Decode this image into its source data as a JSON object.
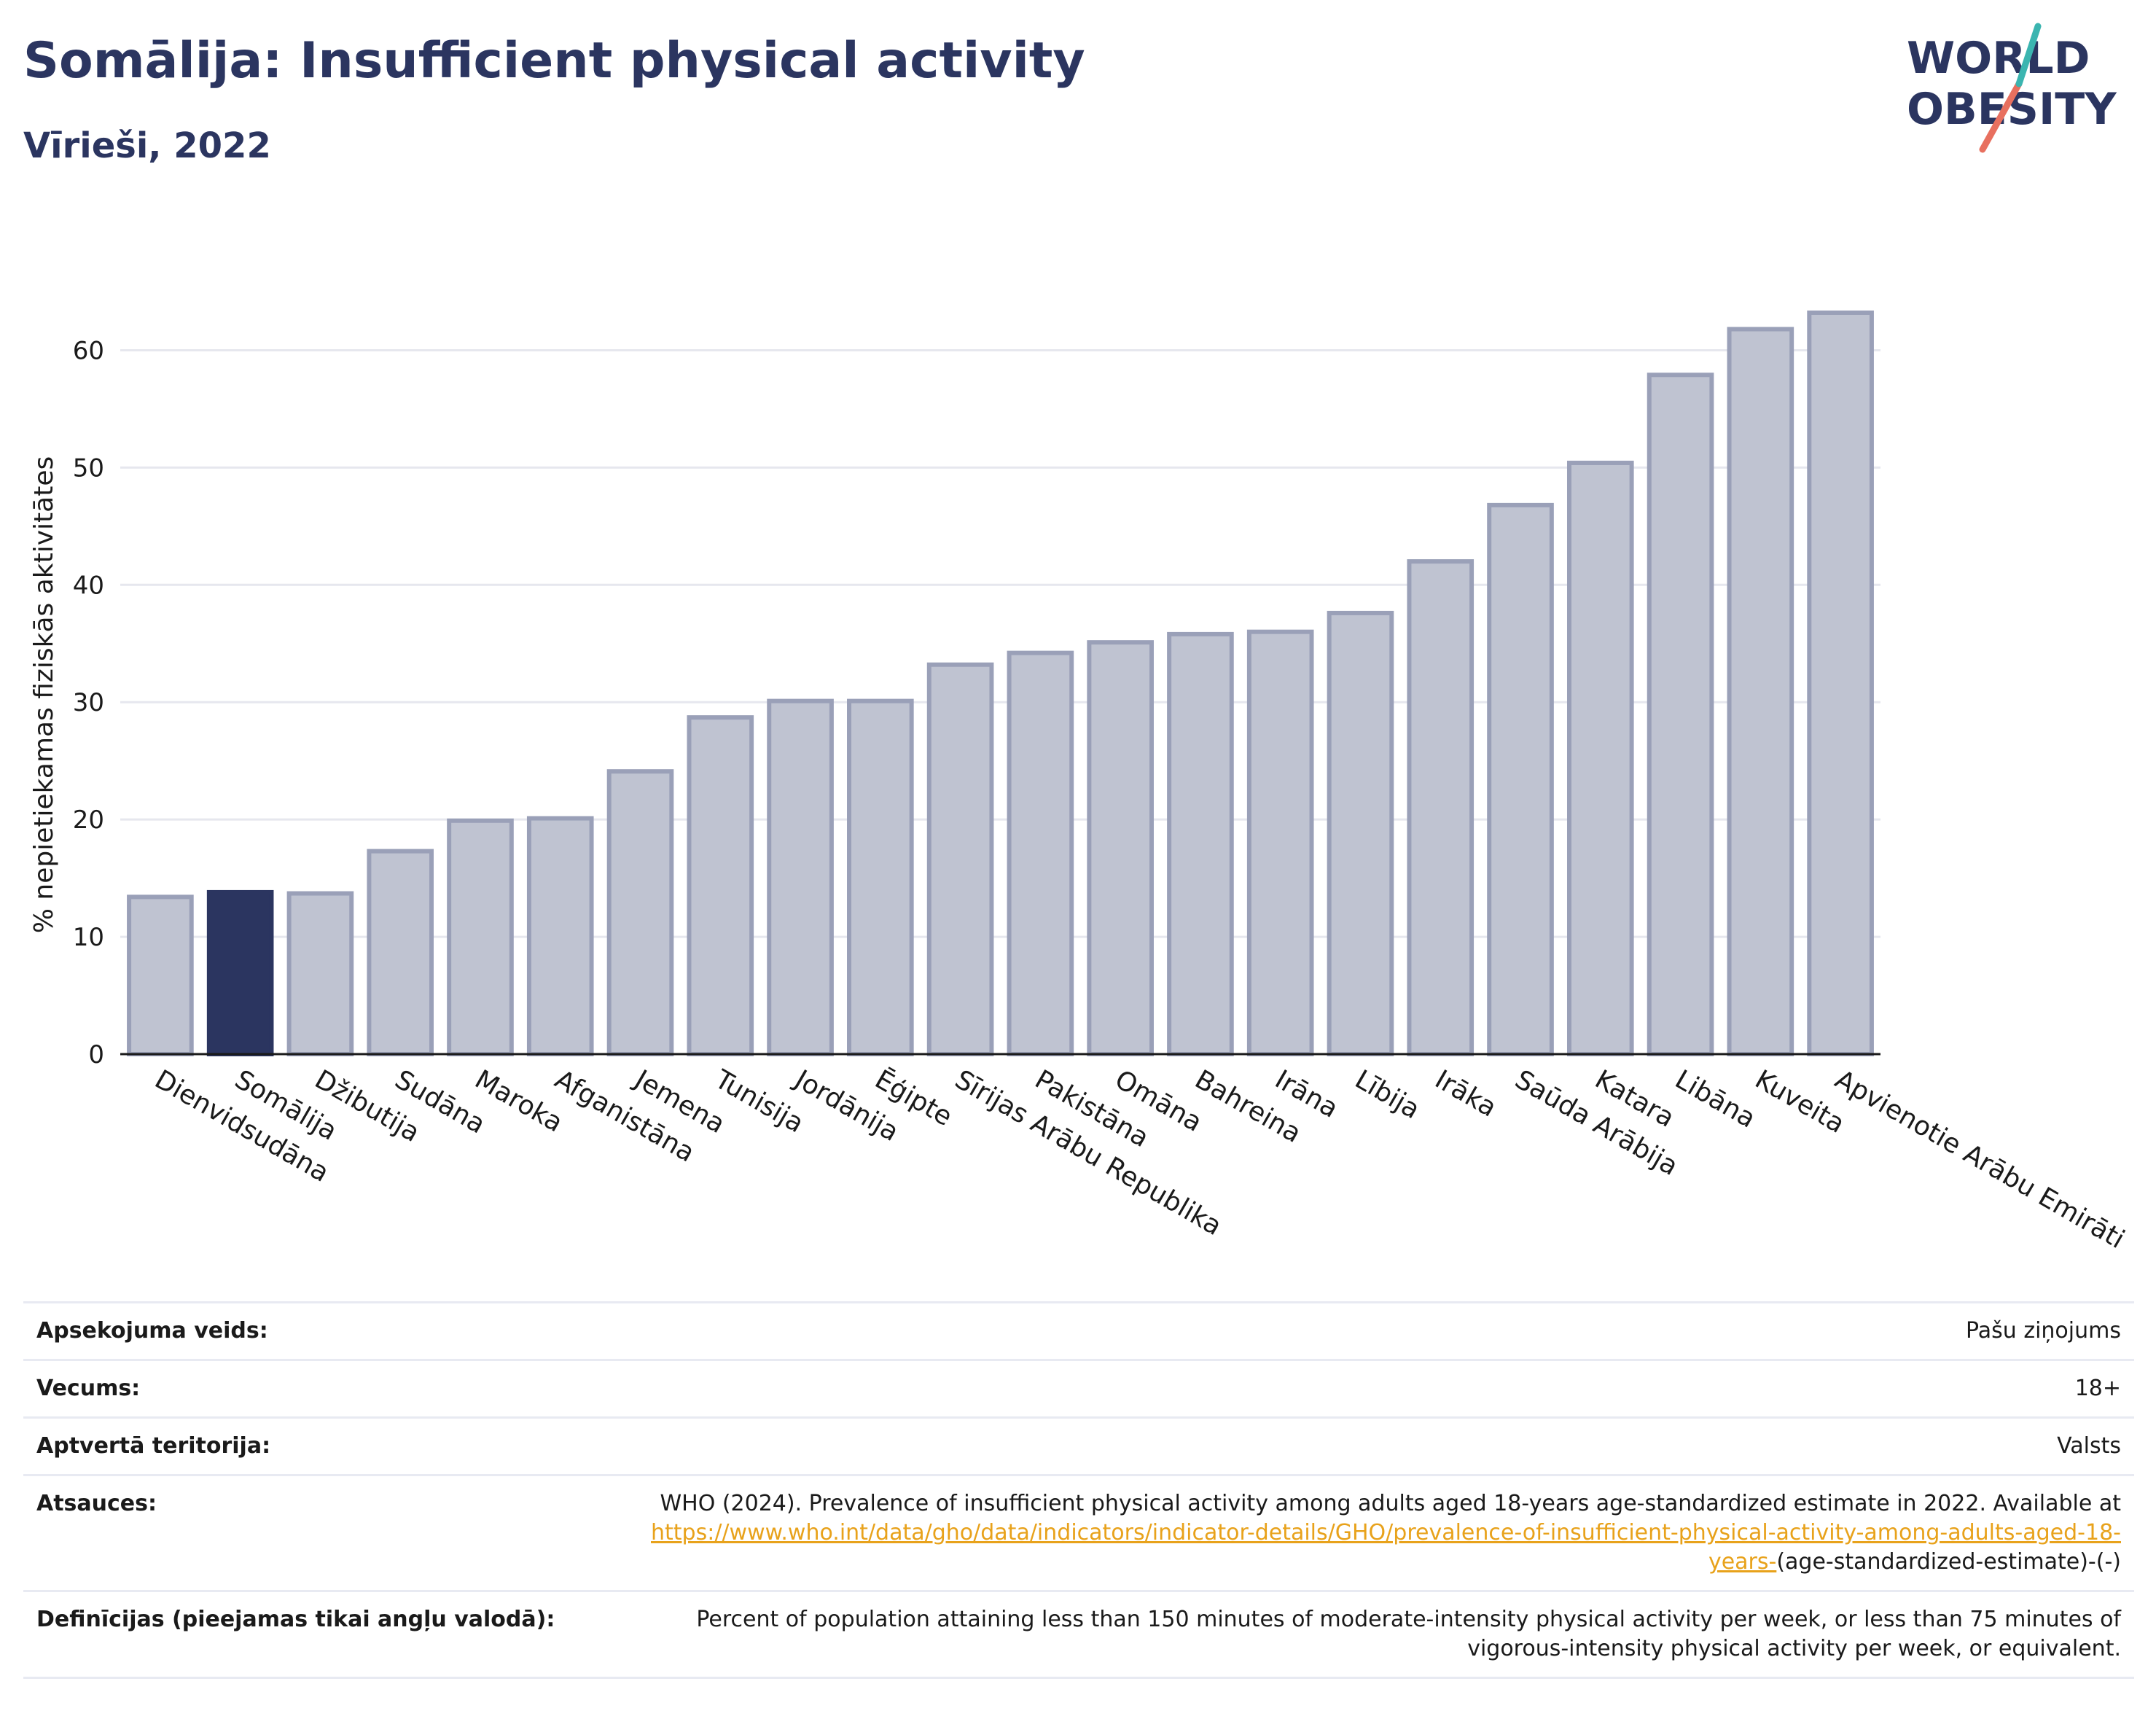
{
  "header": {
    "title": "Somālija: Insufficient physical activity",
    "subtitle": "Vīrieši, 2022"
  },
  "logo": {
    "line1": "WORLD",
    "line2": "OBESITY"
  },
  "colors": {
    "highlight": "#2b3560",
    "bar_fill": "#bfc3d1",
    "bar_stroke": "#9aa0b8",
    "grid": "#e6e7ee",
    "link": "#e8a21b"
  },
  "chart_data": {
    "type": "bar",
    "ylabel": "% nepietiekamas fiziskās aktivitātes",
    "ylim": [
      0,
      65
    ],
    "yticks": [
      0,
      10,
      20,
      30,
      40,
      50,
      60
    ],
    "grid": true,
    "highlight": "Somālija",
    "categories": [
      "Dienvidsudāna",
      "Somālija",
      "Džibutija",
      "Sudāna",
      "Maroka",
      "Afganistāna",
      "Jemena",
      "Tunisija",
      "Jordānija",
      "Ēģipte",
      "Sīrijas Arābu Republika",
      "Pakistāna",
      "Omāna",
      "Bahreina",
      "Irāna",
      "Lībija",
      "Irāka",
      "Saūda Arābija",
      "Katara",
      "Libāna",
      "Kuveita",
      "Apvienotie Arābu Emirāti"
    ],
    "values": [
      13.4,
      13.8,
      13.7,
      17.3,
      19.9,
      20.1,
      24.1,
      28.7,
      30.1,
      30.1,
      33.2,
      34.2,
      35.1,
      35.8,
      36.0,
      37.6,
      42.0,
      46.8,
      50.4,
      57.9,
      61.8,
      63.2
    ]
  },
  "meta": {
    "survey_label": "Apsekojuma veids:",
    "survey_value": "Pašu ziņojums",
    "age_label": "Vecums:",
    "age_value": "18+",
    "coverage_label": "Aptvertā teritorija:",
    "coverage_value": "Valsts",
    "refs_label": "Atsauces:",
    "refs_text": "WHO (2024). Prevalence of insufficient physical activity among adults aged 18-years age-standardized estimate in 2022. Available at",
    "refs_link": "https://www.who.int/data/gho/data/indicators/indicator-details/GHO/prevalence-of-insufficient-physical-activity-among-adults-aged-18-years-",
    "refs_tail": "(age-standardized-estimate)-(-)",
    "def_label": "Definīcijas (pieejamas tikai angļu valodā):",
    "def_text": "Percent of population attaining less than 150 minutes of moderate-intensity physical activity per week, or less than 75 minutes of vigorous-intensity physical activity per week, or equivalent."
  }
}
